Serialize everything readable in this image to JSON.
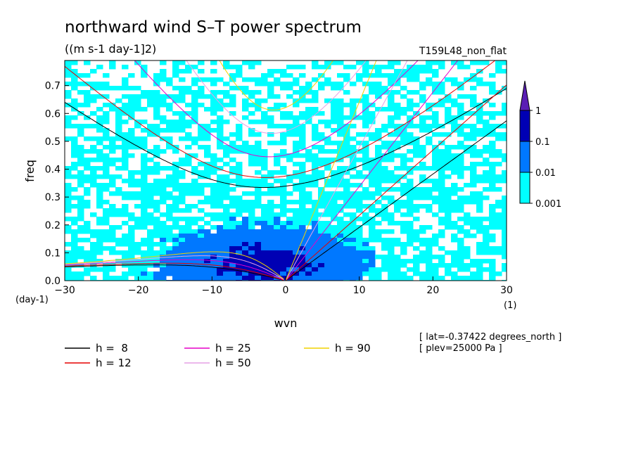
{
  "chart_data": {
    "type": "heatmap",
    "title": "northward wind S–T power spectrum",
    "subtitle": "((m s-1 day-1]2)",
    "run_label": "T159L48_non_flat",
    "xlabel": "wvn",
    "ylabel": "freq",
    "x_unit": "(1)",
    "y_unit": "(day-1)",
    "xlim": [
      -30,
      30
    ],
    "ylim": [
      0,
      0.79
    ],
    "x_ticks": [
      -30,
      -20,
      -10,
      0,
      10,
      20,
      30
    ],
    "x_tick_labels": [
      "−30",
      "−20",
      "−10",
      "0",
      "10",
      "20",
      "30"
    ],
    "y_ticks": [
      0.0,
      0.1,
      0.2,
      0.3,
      0.4,
      0.5,
      0.6,
      0.7
    ],
    "y_tick_labels": [
      "0.0",
      "0.1",
      "0.2",
      "0.3",
      "0.4",
      "0.5",
      "0.6",
      "0.7"
    ],
    "colorbar": {
      "levels": [
        0.001,
        0.01,
        0.1,
        1
      ],
      "level_labels": [
        "0.001",
        "0.01",
        "0.1",
        "1"
      ],
      "colors": [
        "#00ffff",
        "#0078ff",
        "#0000b4",
        "#5a1eb4"
      ]
    },
    "dispersion_curves": [
      {
        "name": "h =  8",
        "h": 8,
        "color": "#000000"
      },
      {
        "name": "h = 12",
        "h": 12,
        "color": "#e60000"
      },
      {
        "name": "h = 25",
        "h": 25,
        "color": "#e600c8"
      },
      {
        "name": "h = 50",
        "h": 50,
        "color": "#e6a0e6"
      },
      {
        "name": "h = 90",
        "h": 90,
        "color": "#f0d200"
      }
    ],
    "annotations": [
      "[ lat=-0.37422 degrees_north ]",
      "[ plev=25000 Pa ]"
    ]
  }
}
